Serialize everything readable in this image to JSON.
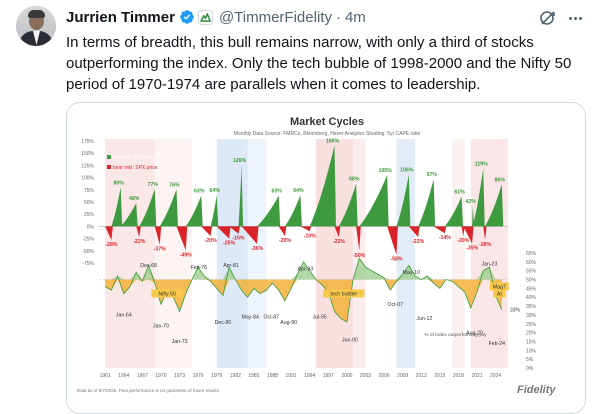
{
  "tweet": {
    "author_name": "Jurrien Timmer",
    "handle": "@TimmerFidelity",
    "separator": "·",
    "time": "4m",
    "text": "In terms of breadth, this bull remains narrow, with only a third of stocks outperforming the index.  Only the tech bubble of 1998-2000 and the Nifty 50 period of 1970-1974 are parallels when it comes to leadership."
  },
  "icons": {
    "verified": "verified-badge-icon",
    "affiliate": "fidelity-affiliate-icon",
    "grok": "grok-icon",
    "more": "more-icon"
  },
  "colors": {
    "bull": "#3e9a3e",
    "bear": "#d9252a",
    "breadth_line": "#3a9a3a",
    "verified_blue": "#1d9bf0",
    "high_cape_shade": "#f6d6d6",
    "low_cape_shade": "#d5e4f4"
  },
  "chart_data": {
    "type": "bar",
    "title": "Market Cycles",
    "subtitle": "Monthly Data   Source: FMRCo, Bloomberg, Haver Analytics   Shading: 5yr CAPE ratio",
    "legend": [
      "bull mkt: SPX price",
      "bear mkt: SPX price"
    ],
    "legend_placement": "top-left",
    "footnote": "Data as of 9/7/2025. Past performance is no guarantee of future results.",
    "brand": "Fidelity",
    "upper_panel": {
      "y_ticks": [
        "175%",
        "150%",
        "125%",
        "100%",
        "75%",
        "50%",
        "25%",
        "0%",
        "-25%",
        "-50%",
        "-75%"
      ],
      "ylim": [
        -75,
        175
      ],
      "bull_peaks": [
        {
          "label": "80%",
          "x": 1963.5,
          "value": 80
        },
        {
          "label": "48%",
          "x": 1966.0,
          "value": 48
        },
        {
          "label": "77%",
          "x": 1969.0,
          "value": 77
        },
        {
          "label": "76%",
          "x": 1972.5,
          "value": 76
        },
        {
          "label": "63%",
          "x": 1976.5,
          "value": 63
        },
        {
          "label": "64%",
          "x": 1979.0,
          "value": 64
        },
        {
          "label": "126%",
          "x": 1983.0,
          "value": 126
        },
        {
          "label": "63%",
          "x": 1989.0,
          "value": 63
        },
        {
          "label": "64%",
          "x": 1992.5,
          "value": 64
        },
        {
          "label": "166%",
          "x": 1998.0,
          "value": 166
        },
        {
          "label": "88%",
          "x": 2001.5,
          "value": 88
        },
        {
          "label": "105%",
          "x": 2006.5,
          "value": 105
        },
        {
          "label": "106%",
          "x": 2010.0,
          "value": 106
        },
        {
          "label": "97%",
          "x": 2014.0,
          "value": 97
        },
        {
          "label": "61%",
          "x": 2018.5,
          "value": 61
        },
        {
          "label": "42%",
          "x": 2020.3,
          "value": 42
        },
        {
          "label": "119%",
          "x": 2022.0,
          "value": 119
        },
        {
          "label": "86%",
          "x": 2025.0,
          "value": 86
        }
      ],
      "bear_troughs": [
        {
          "label": "-28%",
          "x": 1962.0,
          "value": -28
        },
        {
          "label": "-22%",
          "x": 1966.5,
          "value": -22
        },
        {
          "label": "-37%",
          "x": 1969.8,
          "value": -37
        },
        {
          "label": "-49%",
          "x": 1974.0,
          "value": -49
        },
        {
          "label": "-20%",
          "x": 1978.0,
          "value": -20
        },
        {
          "label": "-25%",
          "x": 1981.0,
          "value": -25
        },
        {
          "label": "-15%",
          "x": 1982.5,
          "value": -15
        },
        {
          "label": "-36%",
          "x": 1985.5,
          "value": -36
        },
        {
          "label": "-20%",
          "x": 1990.0,
          "value": -20
        },
        {
          "label": "-10%",
          "x": 1994.0,
          "value": -10
        },
        {
          "label": "-22%",
          "x": 1998.7,
          "value": -22
        },
        {
          "label": "-50%",
          "x": 2002.0,
          "value": -50
        },
        {
          "label": "-58%",
          "x": 2008.0,
          "value": -58
        },
        {
          "label": "-22%",
          "x": 2011.5,
          "value": -22
        },
        {
          "label": "-14%",
          "x": 2015.8,
          "value": -14
        },
        {
          "label": "-20%",
          "x": 2018.8,
          "value": -20
        },
        {
          "label": "-35%",
          "x": 2020.2,
          "value": -35
        },
        {
          "label": "-28%",
          "x": 2022.3,
          "value": -28
        }
      ]
    },
    "lower_panel": {
      "y_ticks": [
        "65%",
        "60%",
        "55%",
        "50%",
        "45%",
        "40%",
        "35%",
        "30%",
        "25%",
        "20%",
        "15%",
        "10%",
        "5%",
        "0%"
      ],
      "ylim": [
        0,
        65
      ],
      "series_name": "% of index outperforming yoy",
      "threshold": 50,
      "min_marker": "33%",
      "breadth_points": [
        [
          1961,
          46
        ],
        [
          1962,
          44
        ],
        [
          1963,
          52
        ],
        [
          1964,
          42
        ],
        [
          1965,
          46
        ],
        [
          1966,
          54
        ],
        [
          1967,
          49
        ],
        [
          1968,
          58
        ],
        [
          1969,
          48
        ],
        [
          1970,
          36
        ],
        [
          1971,
          44
        ],
        [
          1972,
          40
        ],
        [
          1973,
          32
        ],
        [
          1974,
          42
        ],
        [
          1975,
          50
        ],
        [
          1976,
          57
        ],
        [
          1977,
          52
        ],
        [
          1978,
          49
        ],
        [
          1979,
          45
        ],
        [
          1980,
          41
        ],
        [
          1981,
          57
        ],
        [
          1982,
          50
        ],
        [
          1983,
          44
        ],
        [
          1984,
          40
        ],
        [
          1985,
          45
        ],
        [
          1986,
          42
        ],
        [
          1987,
          44
        ],
        [
          1988,
          48
        ],
        [
          1989,
          44
        ],
        [
          1990,
          38
        ],
        [
          1991,
          45
        ],
        [
          1992,
          53
        ],
        [
          1993,
          60
        ],
        [
          1994,
          55
        ],
        [
          1995,
          50
        ],
        [
          1996,
          47
        ],
        [
          1997,
          43
        ],
        [
          1998,
          32
        ],
        [
          1999,
          28
        ],
        [
          2000,
          26
        ],
        [
          2001,
          50
        ],
        [
          2002,
          62
        ],
        [
          2003,
          57
        ],
        [
          2004,
          55
        ],
        [
          2005,
          53
        ],
        [
          2006,
          51
        ],
        [
          2007,
          44
        ],
        [
          2008,
          49
        ],
        [
          2009,
          53
        ],
        [
          2010,
          58
        ],
        [
          2011,
          52
        ],
        [
          2012,
          50
        ],
        [
          2013,
          52
        ],
        [
          2014,
          48
        ],
        [
          2015,
          45
        ],
        [
          2016,
          50
        ],
        [
          2017,
          49
        ],
        [
          2018,
          46
        ],
        [
          2019,
          43
        ],
        [
          2020,
          34
        ],
        [
          2021,
          43
        ],
        [
          2022,
          55
        ],
        [
          2023,
          57
        ],
        [
          2024,
          41
        ],
        [
          2025,
          33
        ]
      ],
      "annotations": [
        {
          "label": "Dec-68",
          "x": 1968.0,
          "y": 57
        },
        {
          "label": "Feb-76",
          "x": 1976.1,
          "y": 56
        },
        {
          "label": "Apr-81",
          "x": 1981.3,
          "y": 57
        },
        {
          "label": "Apr-93",
          "x": 1993.3,
          "y": 55
        },
        {
          "label": "May-10",
          "x": 2010.4,
          "y": 53
        },
        {
          "label": "Jan-23",
          "x": 2023.0,
          "y": 58
        },
        {
          "label": "Nifty 50",
          "x": 1971.0,
          "y": 41
        },
        {
          "label": "tech bubble",
          "x": 1999.5,
          "y": 41
        },
        {
          "label": "Mag7",
          "x": 2024.6,
          "y": 45
        },
        {
          "label": "AI",
          "x": 2024.6,
          "y": 41
        },
        {
          "label": "Jan-64",
          "x": 1964.0,
          "y": 29
        },
        {
          "label": "Jan-70",
          "x": 1970.0,
          "y": 23
        },
        {
          "label": "Jan-73",
          "x": 1973.0,
          "y": 14
        },
        {
          "label": "Dec-80",
          "x": 1980.0,
          "y": 25
        },
        {
          "label": "May-84",
          "x": 1984.4,
          "y": 28
        },
        {
          "label": "Oct-87",
          "x": 1987.8,
          "y": 28
        },
        {
          "label": "Aug-90",
          "x": 1990.6,
          "y": 25
        },
        {
          "label": "Jul-95",
          "x": 1995.6,
          "y": 28
        },
        {
          "label": "Jun-00",
          "x": 2000.5,
          "y": 15
        },
        {
          "label": "Oct-07",
          "x": 2007.8,
          "y": 35
        },
        {
          "label": "Jun-12",
          "x": 2012.5,
          "y": 27
        },
        {
          "label": "Aug-20",
          "x": 2020.6,
          "y": 19
        },
        {
          "label": "Feb-24",
          "x": 2024.2,
          "y": 13
        }
      ]
    },
    "x_ticks": [
      "1961",
      "1964",
      "1967",
      "1970",
      "1973",
      "1976",
      "1979",
      "1982",
      "1985",
      "1988",
      "1991",
      "1994",
      "1997",
      "2000",
      "2003",
      "2006",
      "2009",
      "2012",
      "2015",
      "2018",
      "2021",
      "2024"
    ],
    "xlim": [
      1960,
      2026
    ]
  }
}
